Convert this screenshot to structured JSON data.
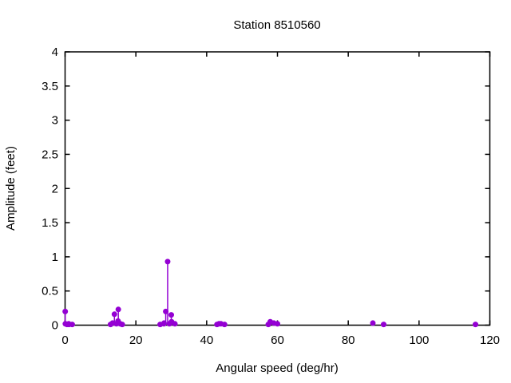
{
  "window": {
    "background": "#ffffff"
  },
  "chart_data": {
    "type": "scatter",
    "style": "impulses-with-points",
    "title": "Station 8510560",
    "xlabel": "Angular speed (deg/hr)",
    "ylabel": "Amplitude (feet)",
    "xlim": [
      0,
      120
    ],
    "ylim": [
      0,
      4
    ],
    "x_ticks": [
      0,
      20,
      40,
      60,
      80,
      100,
      120
    ],
    "y_ticks": [
      0,
      0.5,
      1,
      1.5,
      2,
      2.5,
      3,
      3.5,
      4
    ],
    "grid": false,
    "legend": "none",
    "border": "full-box-mirrored-ticks",
    "point_color": "#9400d3",
    "axis_color": "#000000",
    "background": "#ffffff",
    "points": [
      [
        0.04,
        0.2
      ],
      [
        0.08,
        0.02
      ],
      [
        0.54,
        0.01
      ],
      [
        1.02,
        0.02
      ],
      [
        1.1,
        0.01
      ],
      [
        2.0,
        0.01
      ],
      [
        12.85,
        0.01
      ],
      [
        13.4,
        0.03
      ],
      [
        13.94,
        0.16
      ],
      [
        14.5,
        0.02
      ],
      [
        14.96,
        0.06
      ],
      [
        15.04,
        0.23
      ],
      [
        15.59,
        0.02
      ],
      [
        16.14,
        0.01
      ],
      [
        26.87,
        0.01
      ],
      [
        27.9,
        0.02
      ],
      [
        27.97,
        0.03
      ],
      [
        28.44,
        0.2
      ],
      [
        28.98,
        0.93
      ],
      [
        29.46,
        0.02
      ],
      [
        30.0,
        0.15
      ],
      [
        30.08,
        0.05
      ],
      [
        31.02,
        0.02
      ],
      [
        42.93,
        0.01
      ],
      [
        43.48,
        0.02
      ],
      [
        44.03,
        0.02
      ],
      [
        45.04,
        0.01
      ],
      [
        57.42,
        0.01
      ],
      [
        57.97,
        0.05
      ],
      [
        58.98,
        0.03
      ],
      [
        60.0,
        0.02
      ],
      [
        86.95,
        0.03
      ],
      [
        90.0,
        0.01
      ],
      [
        115.94,
        0.01
      ]
    ]
  }
}
